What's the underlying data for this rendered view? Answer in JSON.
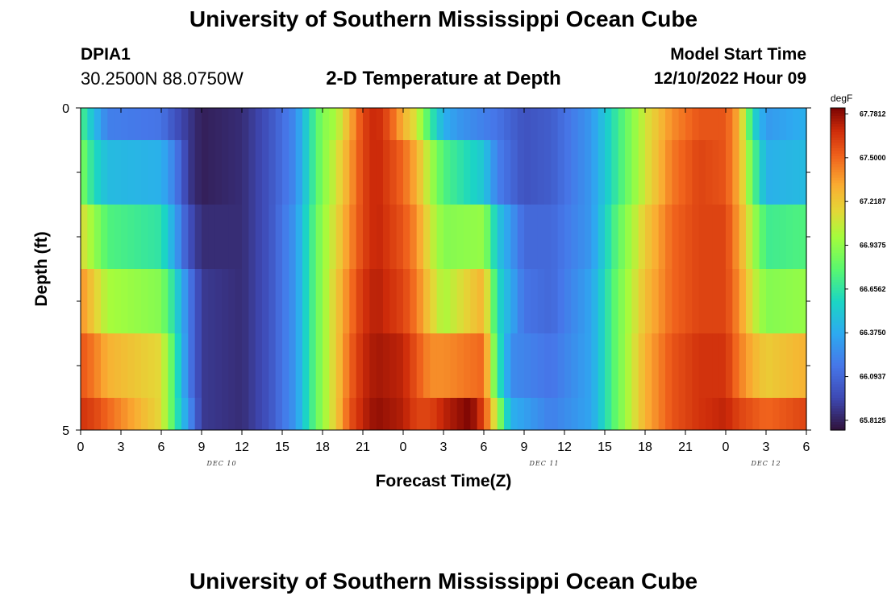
{
  "header": {
    "title": "University of Southern Mississippi Ocean Cube",
    "station_id": "DPIA1",
    "station_coords": "30.2500N  88.0750W",
    "subtitle": "2-D Temperature at Depth",
    "model_start_label": "Model Start Time",
    "model_start_value": "12/10/2022 Hour 09"
  },
  "footer": {
    "title": "University of Southern Mississippi Ocean Cube"
  },
  "chart_data": {
    "type": "heatmap",
    "title": "2-D Temperature at Depth",
    "xlabel": "Forecast Time(Z)",
    "ylabel": "Depth (ft)",
    "x_tick_labels": [
      "0",
      "3",
      "6",
      "9",
      "12",
      "15",
      "18",
      "21",
      "0",
      "3",
      "6",
      "9",
      "12",
      "15",
      "18",
      "21",
      "0",
      "3",
      "6"
    ],
    "date_labels": [
      {
        "text": "DEC 10",
        "at_hour": 10.5
      },
      {
        "text": "DEC 11",
        "at_hour": 34.5
      },
      {
        "text": "DEC 12",
        "at_hour": 51
      }
    ],
    "x_range_hours": [
      0,
      54
    ],
    "y_range_ft": [
      0,
      5
    ],
    "y_tick_labels": [
      {
        "value": 0,
        "label": "0"
      },
      {
        "value": 5,
        "label": "5"
      }
    ],
    "y_minor_ticks": [
      1,
      2,
      3,
      4
    ],
    "colorbar": {
      "unit": "degF",
      "min": 65.75,
      "max": 67.82,
      "labels": [
        "67.7812",
        "67.5000",
        "67.2187",
        "66.9375",
        "66.6562",
        "66.3750",
        "66.0937",
        "65.8125"
      ],
      "label_values": [
        67.7812,
        67.5,
        67.2187,
        66.9375,
        66.6562,
        66.375,
        66.0937,
        65.8125
      ]
    },
    "depth_layers": [
      {
        "depth_range": [
          0,
          0.5
        ],
        "profile": [
          [
            0,
            66.75
          ],
          [
            1,
            66.45
          ],
          [
            2,
            66.2
          ],
          [
            6,
            66.15
          ],
          [
            7,
            66.0
          ],
          [
            8,
            65.9
          ],
          [
            9,
            65.8
          ],
          [
            12,
            65.85
          ],
          [
            14,
            66.0
          ],
          [
            16,
            66.25
          ],
          [
            17,
            66.6
          ],
          [
            18,
            66.9
          ],
          [
            19,
            67.0
          ],
          [
            20,
            67.3
          ],
          [
            21,
            67.6
          ],
          [
            22,
            67.7
          ],
          [
            23,
            67.55
          ],
          [
            24,
            67.3
          ],
          [
            25,
            67.1
          ],
          [
            26,
            66.7
          ],
          [
            27,
            66.4
          ],
          [
            28,
            66.3
          ],
          [
            30,
            66.2
          ],
          [
            31,
            66.15
          ],
          [
            33,
            66.0
          ],
          [
            35,
            66.05
          ],
          [
            38,
            66.3
          ],
          [
            40,
            66.7
          ],
          [
            42,
            67.1
          ],
          [
            44,
            67.4
          ],
          [
            46,
            67.55
          ],
          [
            48,
            67.55
          ],
          [
            49,
            67.3
          ],
          [
            50,
            66.6
          ],
          [
            51,
            66.3
          ],
          [
            54,
            66.4
          ]
        ]
      },
      {
        "depth_range": [
          0.5,
          1.5
        ],
        "profile": [
          [
            0,
            66.9
          ],
          [
            1,
            66.6
          ],
          [
            2,
            66.45
          ],
          [
            6,
            66.4
          ],
          [
            7,
            66.2
          ],
          [
            8,
            65.9
          ],
          [
            9,
            65.8
          ],
          [
            12,
            65.85
          ],
          [
            14,
            66.0
          ],
          [
            16,
            66.25
          ],
          [
            17,
            66.6
          ],
          [
            18,
            66.9
          ],
          [
            19,
            67.1
          ],
          [
            20,
            67.35
          ],
          [
            21,
            67.6
          ],
          [
            22,
            67.7
          ],
          [
            24,
            67.5
          ],
          [
            25,
            67.3
          ],
          [
            26,
            67.0
          ],
          [
            27,
            66.75
          ],
          [
            30,
            66.5
          ],
          [
            31,
            66.2
          ],
          [
            33,
            66.0
          ],
          [
            35,
            66.05
          ],
          [
            38,
            66.3
          ],
          [
            40,
            66.7
          ],
          [
            42,
            67.1
          ],
          [
            44,
            67.45
          ],
          [
            46,
            67.6
          ],
          [
            48,
            67.55
          ],
          [
            49,
            67.3
          ],
          [
            50,
            66.8
          ],
          [
            51,
            66.4
          ],
          [
            54,
            66.45
          ]
        ]
      },
      {
        "depth_range": [
          1.5,
          2.5
        ],
        "profile": [
          [
            0,
            67.15
          ],
          [
            1,
            66.95
          ],
          [
            2,
            66.75
          ],
          [
            6,
            66.65
          ],
          [
            7,
            66.35
          ],
          [
            8,
            66.0
          ],
          [
            9,
            65.85
          ],
          [
            12,
            65.85
          ],
          [
            14,
            66.0
          ],
          [
            16,
            66.3
          ],
          [
            17,
            66.65
          ],
          [
            18,
            66.95
          ],
          [
            19,
            67.15
          ],
          [
            20,
            67.4
          ],
          [
            21,
            67.6
          ],
          [
            22,
            67.7
          ],
          [
            24,
            67.55
          ],
          [
            25,
            67.4
          ],
          [
            26,
            67.1
          ],
          [
            27,
            66.9
          ],
          [
            30,
            66.95
          ],
          [
            31,
            66.5
          ],
          [
            33,
            66.1
          ],
          [
            35,
            66.1
          ],
          [
            38,
            66.3
          ],
          [
            40,
            66.8
          ],
          [
            42,
            67.2
          ],
          [
            44,
            67.5
          ],
          [
            46,
            67.6
          ],
          [
            48,
            67.6
          ],
          [
            49,
            67.35
          ],
          [
            50,
            67.0
          ],
          [
            51,
            66.7
          ],
          [
            54,
            66.75
          ]
        ]
      },
      {
        "depth_range": [
          2.5,
          3.5
        ],
        "profile": [
          [
            0,
            67.4
          ],
          [
            1,
            67.2
          ],
          [
            2,
            67.0
          ],
          [
            6,
            66.9
          ],
          [
            7,
            66.6
          ],
          [
            8,
            66.2
          ],
          [
            9,
            65.9
          ],
          [
            12,
            65.85
          ],
          [
            14,
            66.0
          ],
          [
            16,
            66.3
          ],
          [
            17,
            66.65
          ],
          [
            18,
            66.95
          ],
          [
            19,
            67.2
          ],
          [
            20,
            67.45
          ],
          [
            21,
            67.65
          ],
          [
            22,
            67.72
          ],
          [
            24,
            67.6
          ],
          [
            25,
            67.45
          ],
          [
            26,
            67.2
          ],
          [
            27,
            67.0
          ],
          [
            30,
            67.3
          ],
          [
            31,
            66.6
          ],
          [
            33,
            66.15
          ],
          [
            35,
            66.1
          ],
          [
            38,
            66.35
          ],
          [
            40,
            66.85
          ],
          [
            42,
            67.25
          ],
          [
            44,
            67.5
          ],
          [
            46,
            67.6
          ],
          [
            48,
            67.6
          ],
          [
            49,
            67.4
          ],
          [
            50,
            67.1
          ],
          [
            51,
            66.9
          ],
          [
            54,
            66.95
          ]
        ]
      },
      {
        "depth_range": [
          3.5,
          4.5
        ],
        "profile": [
          [
            0,
            67.55
          ],
          [
            1,
            67.45
          ],
          [
            2,
            67.3
          ],
          [
            6,
            67.15
          ],
          [
            7,
            66.7
          ],
          [
            8,
            66.2
          ],
          [
            9,
            65.9
          ],
          [
            12,
            65.85
          ],
          [
            14,
            66.0
          ],
          [
            16,
            66.3
          ],
          [
            17,
            66.65
          ],
          [
            18,
            66.95
          ],
          [
            19,
            67.2
          ],
          [
            20,
            67.5
          ],
          [
            21,
            67.68
          ],
          [
            22,
            67.75
          ],
          [
            24,
            67.7
          ],
          [
            25,
            67.55
          ],
          [
            26,
            67.4
          ],
          [
            27,
            67.4
          ],
          [
            30,
            67.5
          ],
          [
            31,
            66.7
          ],
          [
            32,
            66.25
          ],
          [
            35,
            66.15
          ],
          [
            38,
            66.35
          ],
          [
            40,
            66.85
          ],
          [
            42,
            67.3
          ],
          [
            44,
            67.55
          ],
          [
            46,
            67.65
          ],
          [
            48,
            67.65
          ],
          [
            49,
            67.45
          ],
          [
            50,
            67.3
          ],
          [
            51,
            67.2
          ],
          [
            54,
            67.3
          ]
        ]
      },
      {
        "depth_range": [
          4.5,
          5
        ],
        "profile": [
          [
            0,
            67.65
          ],
          [
            1,
            67.6
          ],
          [
            2,
            67.5
          ],
          [
            6,
            67.15
          ],
          [
            7,
            66.7
          ],
          [
            8,
            66.3
          ],
          [
            9,
            65.9
          ],
          [
            12,
            65.85
          ],
          [
            14,
            66.0
          ],
          [
            16,
            66.3
          ],
          [
            17,
            66.65
          ],
          [
            18,
            66.95
          ],
          [
            19,
            67.2
          ],
          [
            20,
            67.55
          ],
          [
            21,
            67.7
          ],
          [
            22,
            67.78
          ],
          [
            24,
            67.72
          ],
          [
            25,
            67.6
          ],
          [
            26,
            67.6
          ],
          [
            27,
            67.7
          ],
          [
            29,
            67.82
          ],
          [
            30,
            67.6
          ],
          [
            31,
            67.0
          ],
          [
            32,
            66.4
          ],
          [
            35,
            66.2
          ],
          [
            38,
            66.35
          ],
          [
            40,
            66.85
          ],
          [
            42,
            67.3
          ],
          [
            44,
            67.55
          ],
          [
            46,
            67.65
          ],
          [
            48,
            67.7
          ],
          [
            49,
            67.6
          ],
          [
            50,
            67.55
          ],
          [
            51,
            67.5
          ],
          [
            54,
            67.6
          ]
        ]
      }
    ]
  }
}
